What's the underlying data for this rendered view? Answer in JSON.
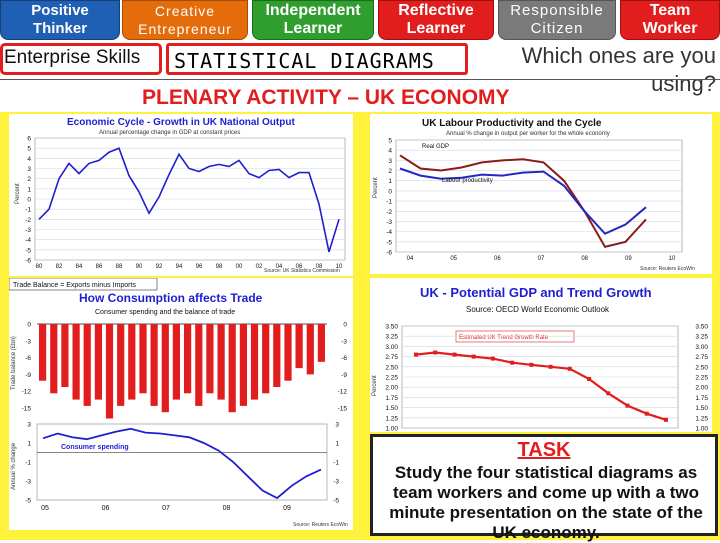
{
  "badges": [
    {
      "line1": "Positive",
      "line2": "Thinker"
    },
    {
      "line1": "Creative",
      "line2": "Entrepreneur"
    },
    {
      "line1": "Independent",
      "line2": "Learner"
    },
    {
      "line1": "Reflective",
      "line2": "Learner"
    },
    {
      "line1": "Responsible",
      "line2": "Citizen"
    },
    {
      "line1": "Team",
      "line2": "Worker"
    }
  ],
  "header": {
    "skills_label": "Enterprise Skills",
    "main_title": "STATISTICAL DIAGRAMS",
    "question_line1": "Which ones are you",
    "question_line2": "using?",
    "plenary": "PLENARY ACTIVITY – UK ECONOMY"
  },
  "task": {
    "title": "TASK",
    "text": "Study the four statistical diagrams as team workers and come up with a two minute presentation on the state of the UK economy."
  },
  "chart_data": [
    {
      "type": "line",
      "title": "Economic Cycle - Growth in UK National Output",
      "subtitle": "Annual percentage change in GDP at constant prices",
      "ylabel": "Percent",
      "source": "Source: UK Statistics Commission",
      "x": [
        1980,
        1981,
        1982,
        1983,
        1984,
        1985,
        1986,
        1987,
        1988,
        1989,
        1990,
        1991,
        1992,
        1993,
        1994,
        1995,
        1996,
        1997,
        1998,
        1999,
        2000,
        2001,
        2002,
        2003,
        2004,
        2005,
        2006,
        2007,
        2008,
        2009,
        2010
      ],
      "x_ticks": [
        "80",
        "82",
        "84",
        "86",
        "88",
        "90",
        "92",
        "94",
        "96",
        "98",
        "00",
        "02",
        "04",
        "06",
        "08",
        "10"
      ],
      "ylim": [
        -6,
        6
      ],
      "y_ticks": [
        "6",
        "5",
        "4",
        "3",
        "2",
        "1",
        "0",
        "-1",
        "-2",
        "-3",
        "-4",
        "-5",
        "-6"
      ],
      "series": [
        {
          "color": "#1f1fd0",
          "values": [
            -2,
            -1,
            2,
            3.5,
            2.5,
            3.5,
            3.8,
            4.6,
            5,
            2.3,
            0.7,
            -1.4,
            0.2,
            2.4,
            4.4,
            3,
            2.7,
            3.2,
            3.4,
            3.2,
            3.8,
            2.5,
            2.1,
            2.8,
            2.9,
            2.1,
            2.6,
            2.6,
            -0.5,
            -5.2,
            -2
          ]
        }
      ]
    },
    {
      "type": "line",
      "title": "UK Labour Productivity and the Cycle",
      "subtitle": "Annual % change in output per worker for the whole economy",
      "ylabel": "Percent",
      "source": "Source: Reuters EcoWin",
      "x": [
        "04",
        "04.5",
        "05",
        "05.5",
        "06",
        "06.5",
        "07",
        "07.5",
        "08",
        "08.5",
        "09",
        "09.5",
        "10"
      ],
      "x_ticks": [
        "04",
        "05",
        "06",
        "07",
        "08",
        "09",
        "10"
      ],
      "ylim": [
        -6,
        5
      ],
      "y_ticks": [
        "5",
        "4",
        "3",
        "2",
        "1",
        "0",
        "-1",
        "-2",
        "-3",
        "-4",
        "-5",
        "-6"
      ],
      "series": [
        {
          "name": "Real GDP",
          "color": "#8b1a1a",
          "values": [
            3.5,
            2.2,
            2.0,
            2.3,
            2.8,
            3.0,
            3.1,
            2.8,
            1.0,
            -2.0,
            -5.5,
            -5.0,
            -2.8
          ]
        },
        {
          "name": "Labour productivity",
          "color": "#2626c4",
          "values": [
            2.2,
            1.5,
            1.2,
            1.3,
            1.6,
            1.5,
            1.8,
            1.9,
            0.5,
            -2.0,
            -4.2,
            -3.3,
            -1.6
          ]
        }
      ]
    },
    {
      "type": "bar",
      "title": "How Consumption affects Trade",
      "subtitle": "Consumer spending and the balance of trade",
      "caption": "Trade Balance = Exports minus Imports",
      "ylabel": "Trade balance (£bn)",
      "ylabel2": "Annual % change",
      "series_label": "Consumer spending",
      "source": "Source: Reuters EcoWin",
      "x_ticks": [
        "05",
        "06",
        "07",
        "08",
        "09"
      ],
      "ylim": [
        -18,
        0
      ],
      "y_ticks": [
        "0",
        "-3",
        "-6",
        "-9",
        "-12",
        "-15"
      ],
      "y2_ticks": [
        "3",
        "1",
        "-1",
        "-3",
        "-5"
      ],
      "values": [
        -9,
        -11,
        -10,
        -12,
        -13,
        -12,
        -15,
        -13,
        -12,
        -11,
        -13,
        -14,
        -12,
        -11,
        -13,
        -11,
        -12,
        -14,
        -13,
        -12,
        -11,
        -10,
        -9,
        -7,
        -8,
        -6
      ],
      "spending": {
        "color": "#1f1fd0",
        "values": [
          1.5,
          2,
          1.6,
          1.4,
          1.8,
          2.2,
          2.5,
          2.1,
          2,
          1.8,
          1.6,
          1,
          0.2,
          -1,
          -2.5,
          -4,
          -4.8,
          -3.5,
          -2.5,
          -1.8
        ]
      }
    },
    {
      "type": "line",
      "title": "UK - Potential GDP and Trend Growth",
      "subtitle": "Source: OECD World Economic Outlook",
      "series_label": "Estimated UK Trend Growth Rate",
      "ylim": [
        1.0,
        3.5
      ],
      "y_ticks": [
        "3.50",
        "3.25",
        "3.00",
        "2.75",
        "2.50",
        "2.25",
        "2.00",
        "1.75",
        "1.50",
        "1.25",
        "1.00"
      ],
      "ylabel": "Percent",
      "series": [
        {
          "name": "Estimated UK Trend Growth Rate",
          "color": "#e21d1d",
          "values": [
            2.8,
            2.85,
            2.8,
            2.75,
            2.7,
            2.6,
            2.55,
            2.5,
            2.45,
            2.2,
            1.85,
            1.55,
            1.35,
            1.2
          ]
        }
      ]
    }
  ]
}
